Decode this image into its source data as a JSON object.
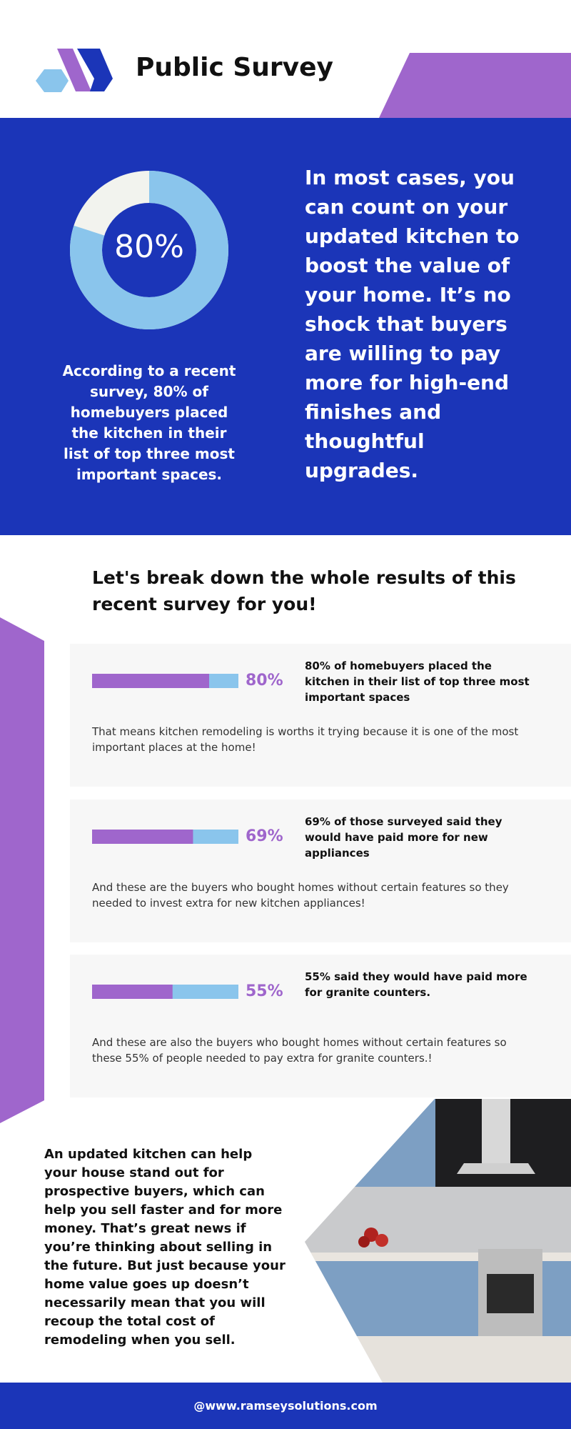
{
  "header": {
    "title": "Public Survey"
  },
  "highlight": {
    "donut": {
      "value": 80,
      "label": "80%"
    },
    "range": [
      0,
      100
    ],
    "caption": "According to a recent survey, 80% of homebuyers placed the kitchen in their list of top three most important spaces.",
    "statement": "In most cases, you can count on your updated kitchen to boost the value of your home. It’s no shock that buyers are willing to pay more for high-end finishes and thoughtful upgrades."
  },
  "breakdown": {
    "heading": "Let's break down the whole results of this recent survey for you!",
    "range": [
      0,
      100
    ],
    "items": [
      {
        "value": 80,
        "label": "80%",
        "headline": "80% of homebuyers placed the kitchen in their list of top three most important spaces",
        "body": "That means kitchen remodeling is worths it trying because it is one of the most important places at the home!"
      },
      {
        "value": 69,
        "label": "69%",
        "headline": "69% of those surveyed said they would have paid more for new appliances",
        "body": "And these are the buyers who bought homes without certain features so they needed to invest extra for new kitchen appliances!"
      },
      {
        "value": 55,
        "label": "55%",
        "headline": "55% said they would have paid more for granite counters.",
        "body": "And these are also the buyers who bought homes without certain features so these 55% of people needed to pay extra for granite counters.!"
      }
    ]
  },
  "closing": {
    "text": "An updated kitchen can help your house stand out for prospective buyers, which can help you sell faster and for more money. That’s great news if you’re thinking about selling in the future. But just because your home value goes up doesn’t necessarily mean that you will recoup the total cost of remodeling when you sell."
  },
  "footer": {
    "text": "@www.ramseysolutions.com"
  }
}
